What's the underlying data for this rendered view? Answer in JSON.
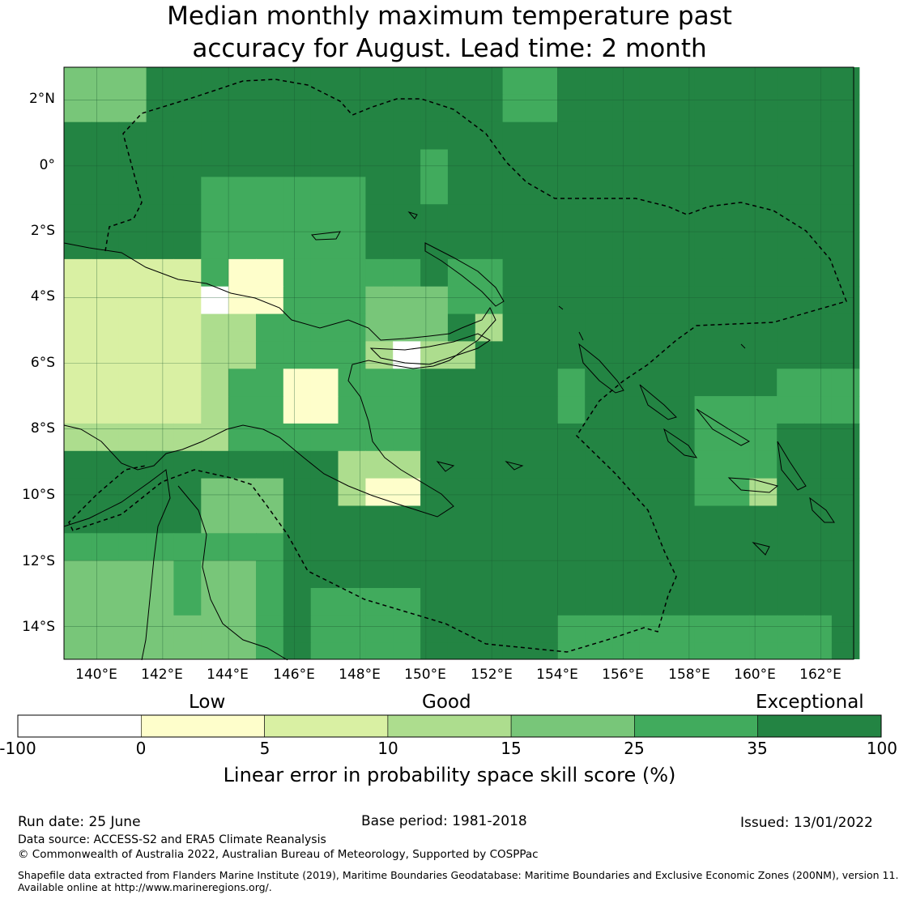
{
  "title": {
    "line1": "Median monthly maximum temperature past",
    "line2": "accuracy for August. Lead time: 2 month"
  },
  "map": {
    "lat_ticks": [
      "2°N",
      "0°",
      "2°S",
      "4°S",
      "6°S",
      "8°S",
      "10°S",
      "12°S",
      "14°S"
    ],
    "lon_ticks": [
      "140°E",
      "142°E",
      "144°E",
      "146°E",
      "148°E",
      "150°E",
      "152°E",
      "154°E",
      "156°E",
      "158°E",
      "160°E",
      "162°E"
    ],
    "lat_range": [
      -15,
      3
    ],
    "lon_range": [
      139,
      163
    ],
    "colors": {
      "lt0": "#ffffff",
      "c0_5": "#fefecb",
      "c5_10": "#d9f0a3",
      "c10_15": "#addd8e",
      "c15_25": "#78c679",
      "c25_35": "#41ab5d",
      "c35_100": "#238443",
      "grid": "#1a5a30",
      "border": "#000000"
    }
  },
  "colorbar": {
    "category_labels": {
      "low": "Low",
      "good": "Good",
      "exceptional": "Exceptional"
    },
    "ticks": [
      "-100",
      "0",
      "5",
      "10",
      "15",
      "25",
      "35",
      "100"
    ],
    "bin_colors": [
      "#ffffff",
      "#fefecb",
      "#d9f0a3",
      "#addd8e",
      "#78c679",
      "#41ab5d",
      "#238443"
    ],
    "title": "Linear error in probability space skill score (%)"
  },
  "footer": {
    "run_date": "Run date: 25 June",
    "base_period": "Base period: 1981-2018",
    "issued": "Issued: 13/01/2022",
    "data_source": "Data source: ACCESS-S2 and ERA5 Climate Reanalysis",
    "copyright": "© Commonwealth of Australia 2022, Australian Bureau of Meteorology, Supported by COSPPac",
    "shapefile_line1": "Shapefile data extracted from Flanders Marine Institute (2019), Maritime Boundaries Geodatabase: Maritime Boundaries and Exclusive Economic Zones (200NM), version 11.",
    "shapefile_line2": "Available online at http://www.marineregions.org/."
  }
}
